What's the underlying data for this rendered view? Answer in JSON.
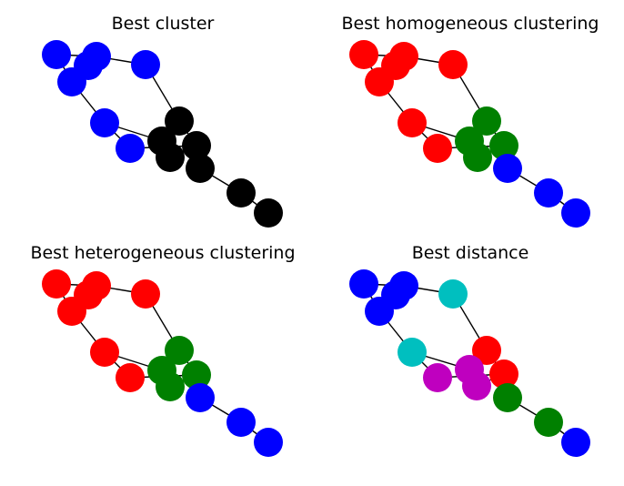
{
  "figure": {
    "panels": [
      {
        "title": "Best cluster",
        "colors": [
          "#0000ff",
          "#0000ff",
          "#0000ff",
          "#0000ff",
          "#0000ff",
          "#0000ff",
          "#0000ff",
          "#000000",
          "#000000",
          "#000000",
          "#000000",
          "#000000",
          "#000000",
          "#000000"
        ]
      },
      {
        "title": "Best homogeneous clustering",
        "colors": [
          "#ff0000",
          "#ff0000",
          "#ff0000",
          "#ff0000",
          "#ff0000",
          "#ff0000",
          "#ff0000",
          "#008000",
          "#008000",
          "#008000",
          "#008000",
          "#0000ff",
          "#0000ff",
          "#0000ff"
        ]
      },
      {
        "title": "Best heterogeneous clustering",
        "colors": [
          "#ff0000",
          "#ff0000",
          "#ff0000",
          "#ff0000",
          "#ff0000",
          "#ff0000",
          "#ff0000",
          "#008000",
          "#008000",
          "#008000",
          "#008000",
          "#0000ff",
          "#0000ff",
          "#0000ff"
        ]
      },
      {
        "title": "Best distance",
        "colors": [
          "#0000ff",
          "#0000ff",
          "#0000ff",
          "#0000ff",
          "#00bfbf",
          "#00bfbf",
          "#bf00bf",
          "#ff0000",
          "#bf00bf",
          "#ff0000",
          "#bf00bf",
          "#008000",
          "#008000",
          "#0000ff"
        ]
      }
    ]
  }
}
